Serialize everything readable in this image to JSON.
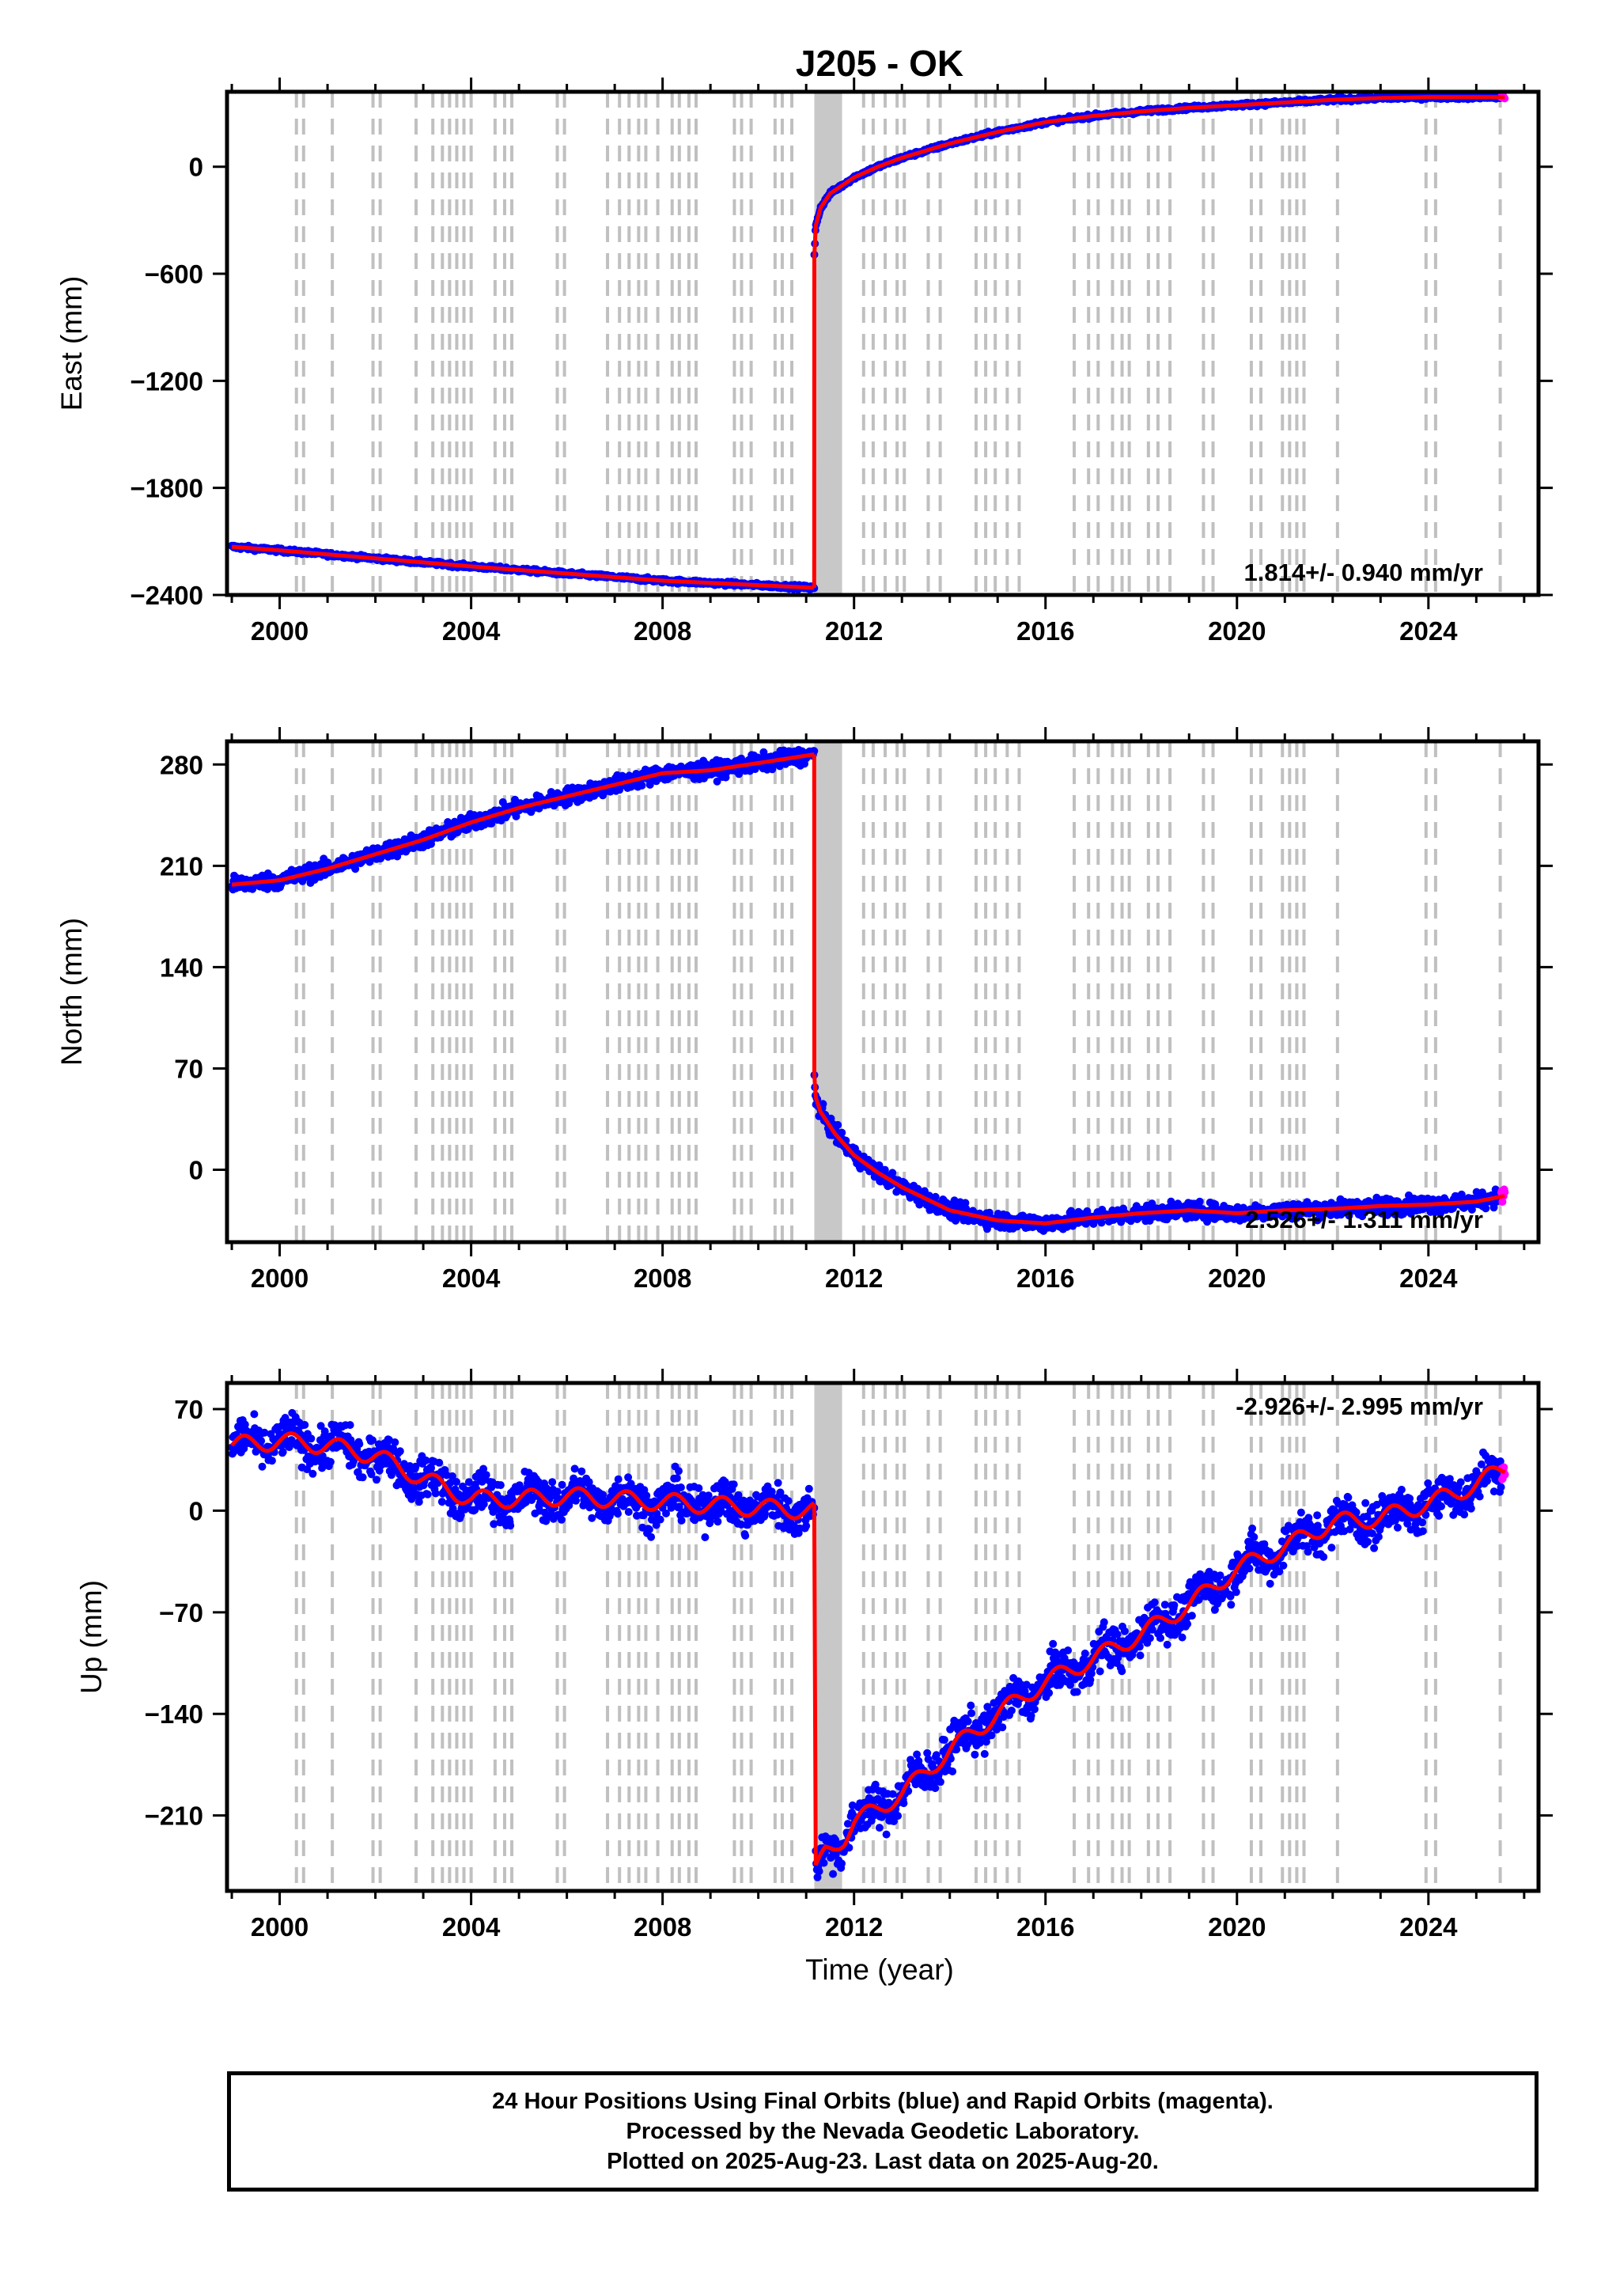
{
  "title": "J205 - OK",
  "x_axis": {
    "label": "Time (year)",
    "range": [
      1998.9,
      2026.3
    ],
    "ticks": [
      2000,
      2004,
      2008,
      2012,
      2016,
      2020,
      2024
    ]
  },
  "colors": {
    "final_orbits": "#0000ff",
    "rapid_orbits": "#ff00ff",
    "model_fit": "#ff0000",
    "event_lines": "#c0c0c0"
  },
  "event_lines": [
    2000.35,
    2000.5,
    2001.1,
    2001.95,
    2002.1,
    2002.85,
    2003.2,
    2003.4,
    2003.55,
    2003.7,
    2003.85,
    2004.0,
    2004.5,
    2004.7,
    2004.85,
    2005.8,
    2005.95,
    2006.85,
    2007.1,
    2007.3,
    2007.5,
    2007.65,
    2007.9,
    2008.2,
    2008.35,
    2008.55,
    2008.7,
    2009.5,
    2009.65,
    2009.85,
    2010.35,
    2010.5,
    2010.7,
    2012.2,
    2012.4,
    2012.65,
    2012.9,
    2013.05,
    2013.55,
    2013.8,
    2014.55,
    2014.75,
    2014.95,
    2015.2,
    2015.45,
    2016.6,
    2016.9,
    2017.1,
    2017.4,
    2017.6,
    2017.75,
    2018.15,
    2018.35,
    2018.6,
    2019.3,
    2019.5,
    2020.3,
    2020.5,
    2020.95,
    2021.1,
    2021.25,
    2021.4,
    2022.1,
    2023.95,
    2024.15,
    2025.5
  ],
  "event_band": [
    2011.17,
    2011.75
  ],
  "chart_data": [
    {
      "type": "scatter",
      "name": "east",
      "ylabel": "East (mm)",
      "ylim": [
        -2400,
        420
      ],
      "yticks": [
        0,
        -600,
        -1200,
        -1800,
        -2400
      ],
      "annotation": "1.814+/- 0.940 mm/yr",
      "segments": [
        {
          "x": [
            1999.0,
            2000.0,
            2002.0,
            2004.0,
            2006.0,
            2008.0,
            2010.0,
            2011.17
          ],
          "y": [
            -2130,
            -2150,
            -2195,
            -2240,
            -2280,
            -2320,
            -2345,
            -2360
          ]
        },
        {
          "x": [
            2011.17,
            2011.2,
            2011.3,
            2011.5,
            2012.0,
            2012.5,
            2013.0,
            2014.0,
            2015.0,
            2016.0,
            2017.0,
            2018.0,
            2019.0,
            2020.0,
            2021.0,
            2022.0,
            2023.0,
            2024.0,
            2025.0,
            2025.6
          ],
          "y": [
            -500,
            -330,
            -230,
            -150,
            -60,
            0,
            50,
            130,
            195,
            250,
            285,
            310,
            330,
            345,
            360,
            375,
            385,
            390,
            390,
            390
          ]
        }
      ],
      "noise": 8
    },
    {
      "type": "scatter",
      "name": "north",
      "ylabel": "North (mm)",
      "ylim": [
        -50,
        296
      ],
      "yticks": [
        280,
        210,
        140,
        70,
        0
      ],
      "annotation": "2.526+/- 1.311 mm/yr",
      "segments": [
        {
          "x": [
            1999.0,
            2000.0,
            2001.0,
            2002.0,
            2003.0,
            2004.0,
            2005.0,
            2006.0,
            2007.0,
            2008.0,
            2009.0,
            2010.0,
            2011.17
          ],
          "y": [
            197,
            200,
            208,
            218,
            228,
            240,
            250,
            258,
            266,
            274,
            276,
            281,
            287
          ]
        },
        {
          "x": [
            2011.17,
            2011.2,
            2011.3,
            2011.6,
            2012.0,
            2012.5,
            2013.0,
            2014.0,
            2015.0,
            2016.0,
            2017.0,
            2018.0,
            2019.0,
            2020.0,
            2021.0,
            2022.0,
            2023.0,
            2024.0,
            2025.0,
            2025.6
          ],
          "y": [
            65,
            50,
            40,
            25,
            10,
            -2,
            -12,
            -28,
            -35,
            -37,
            -33,
            -30,
            -28,
            -30,
            -28,
            -27,
            -25,
            -24,
            -22,
            -18
          ]
        }
      ],
      "noise": 4
    },
    {
      "type": "scatter",
      "name": "up",
      "ylabel": "Up (mm)",
      "ylim": [
        -262,
        88
      ],
      "yticks": [
        70,
        0,
        -70,
        -140,
        -210
      ],
      "annotation": "-2.926+/- 2.995 mm/yr",
      "segments": [
        {
          "x": [
            1999.0,
            2000.0,
            2001.0,
            2002.0,
            2003.0,
            2004.0,
            2005.0,
            2006.0,
            2007.0,
            2008.0,
            2009.0,
            2010.0,
            2011.17
          ],
          "y": [
            45,
            48,
            45,
            38,
            22,
            8,
            8,
            10,
            8,
            6,
            4,
            2,
            0
          ]
        },
        {
          "x": [
            2011.2,
            2011.4,
            2011.8,
            2012.0,
            2013.0,
            2014.0,
            2015.0,
            2016.0,
            2017.0,
            2018.0,
            2019.0,
            2020.0,
            2021.0,
            2022.0,
            2023.0,
            2024.0,
            2025.0,
            2025.6
          ],
          "y": [
            -250,
            -235,
            -225,
            -215,
            -195,
            -165,
            -140,
            -118,
            -102,
            -85,
            -65,
            -40,
            -25,
            -8,
            -5,
            5,
            18,
            30
          ]
        }
      ],
      "noise": 10
    }
  ],
  "footer": {
    "line1": "24 Hour Positions Using Final Orbits (blue) and Rapid Orbits (magenta).",
    "line2": "Processed by the Nevada Geodetic Laboratory.",
    "line3": "Plotted on 2025-Aug-23. Last data on 2025-Aug-20."
  }
}
